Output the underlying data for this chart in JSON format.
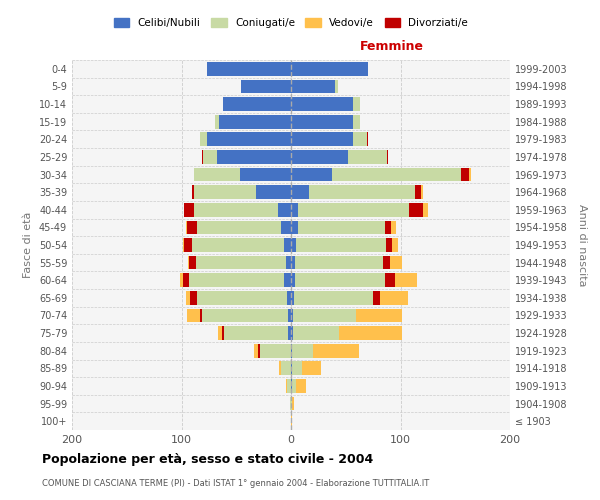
{
  "age_groups": [
    "100+",
    "95-99",
    "90-94",
    "85-89",
    "80-84",
    "75-79",
    "70-74",
    "65-69",
    "60-64",
    "55-59",
    "50-54",
    "45-49",
    "40-44",
    "35-39",
    "30-34",
    "25-29",
    "20-24",
    "15-19",
    "10-14",
    "5-9",
    "0-4"
  ],
  "birth_years": [
    "≤ 1903",
    "1904-1908",
    "1909-1913",
    "1914-1918",
    "1919-1923",
    "1924-1928",
    "1929-1933",
    "1934-1938",
    "1939-1943",
    "1944-1948",
    "1949-1953",
    "1954-1958",
    "1959-1963",
    "1964-1968",
    "1969-1973",
    "1974-1978",
    "1979-1983",
    "1984-1988",
    "1989-1993",
    "1994-1998",
    "1999-2003"
  ],
  "males": {
    "celibi": [
      0,
      0,
      0,
      0,
      0,
      3,
      3,
      4,
      6,
      5,
      6,
      9,
      12,
      32,
      47,
      68,
      77,
      66,
      62,
      46,
      77
    ],
    "coniugati": [
      0,
      1,
      4,
      9,
      28,
      58,
      78,
      82,
      87,
      82,
      84,
      77,
      77,
      57,
      42,
      12,
      6,
      3,
      0,
      0,
      0
    ],
    "vedovi": [
      0,
      0,
      1,
      2,
      4,
      4,
      12,
      4,
      2,
      1,
      1,
      1,
      0,
      0,
      0,
      0,
      0,
      0,
      0,
      0,
      0
    ],
    "divorziati": [
      0,
      0,
      0,
      0,
      2,
      2,
      2,
      6,
      6,
      6,
      8,
      9,
      9,
      1,
      0,
      1,
      0,
      0,
      0,
      0,
      0
    ]
  },
  "females": {
    "nubili": [
      0,
      0,
      1,
      1,
      1,
      2,
      2,
      3,
      4,
      4,
      5,
      6,
      6,
      16,
      37,
      52,
      57,
      57,
      57,
      40,
      70
    ],
    "coniugate": [
      0,
      1,
      4,
      9,
      19,
      42,
      57,
      72,
      82,
      80,
      82,
      80,
      102,
      97,
      118,
      36,
      12,
      6,
      6,
      3,
      0
    ],
    "vedove": [
      1,
      2,
      9,
      17,
      42,
      57,
      42,
      26,
      20,
      11,
      6,
      5,
      4,
      2,
      1,
      0,
      0,
      0,
      0,
      0,
      0
    ],
    "divorziate": [
      0,
      0,
      0,
      0,
      0,
      0,
      0,
      6,
      9,
      6,
      5,
      5,
      13,
      6,
      8,
      1,
      1,
      0,
      0,
      0,
      0
    ]
  },
  "colors": {
    "celibi_nubili": "#4472c4",
    "coniugati": "#c8daa4",
    "vedovi": "#ffc04c",
    "divorziati": "#c00000"
  },
  "xlim": 200,
  "title": "Popolazione per età, sesso e stato civile - 2004",
  "subtitle": "COMUNE DI CASCIANA TERME (PI) - Dati ISTAT 1° gennaio 2004 - Elaborazione TUTTITALIA.IT",
  "ylabel_left": "Fasce di età",
  "ylabel_right": "Anni di nascita",
  "xlabel_right": "Femmine",
  "bg_color": "#f5f5f5"
}
